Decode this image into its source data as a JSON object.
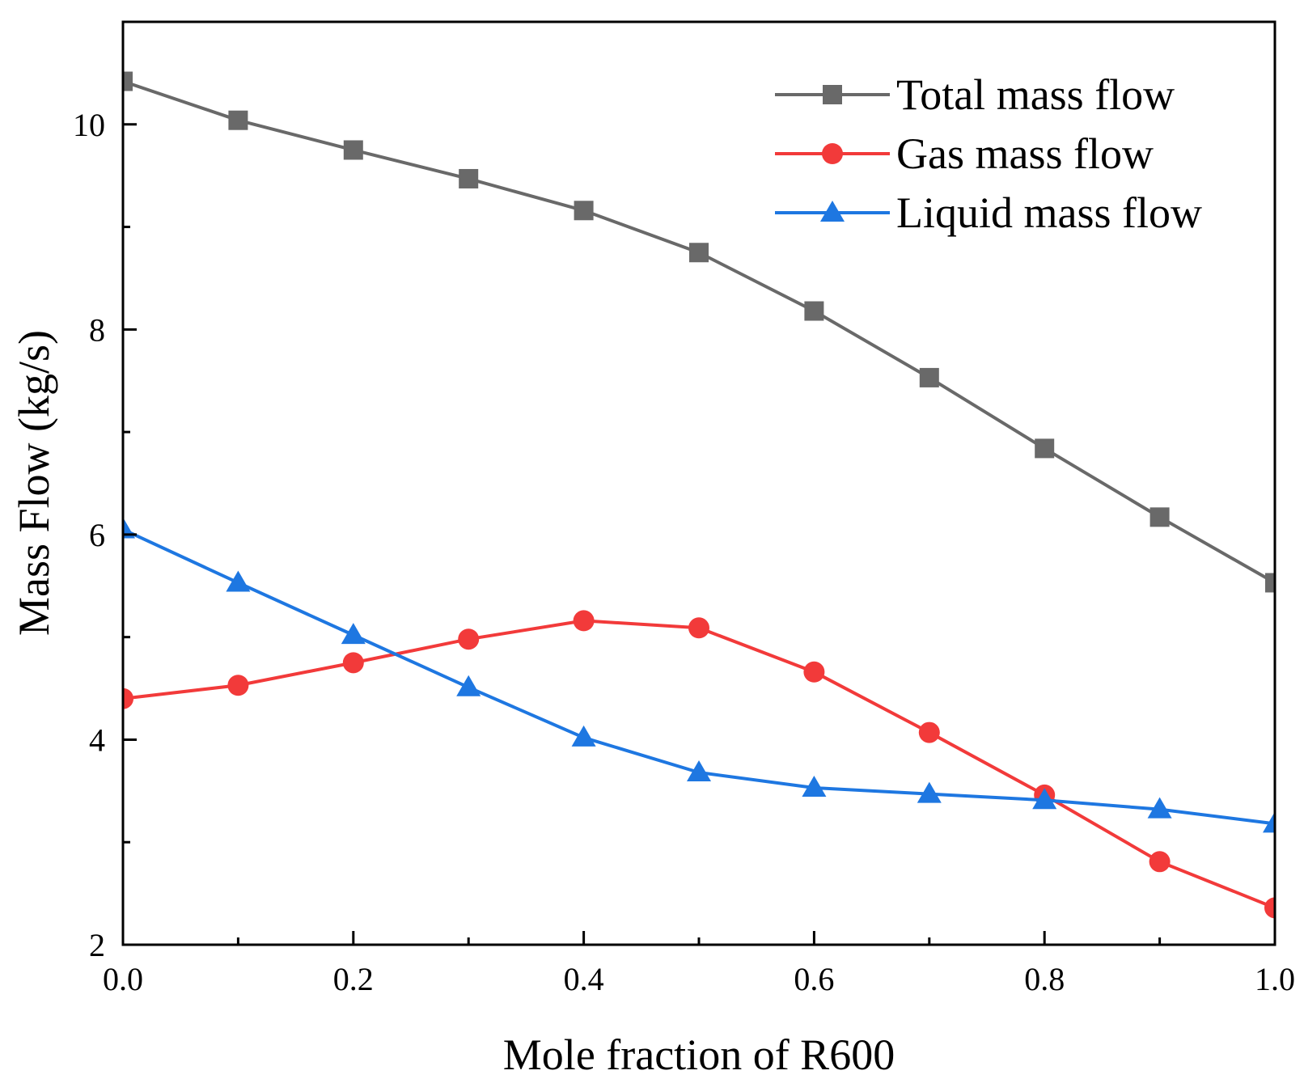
{
  "chart_data": {
    "type": "line",
    "title": "",
    "xlabel": "Mole fraction of R600",
    "ylabel": "Mass Flow (kg/s)",
    "xlim": [
      0.0,
      1.0
    ],
    "ylim": [
      2,
      11
    ],
    "x": [
      0.0,
      0.1,
      0.2,
      0.3,
      0.4,
      0.5,
      0.6,
      0.7,
      0.8,
      0.9,
      1.0
    ],
    "x_ticks": [
      "0.0",
      "0.2",
      "0.4",
      "0.6",
      "0.8",
      "1.0"
    ],
    "x_minor_ticks": [
      0.1,
      0.3,
      0.5,
      0.7,
      0.9
    ],
    "y_ticks": [
      "2",
      "4",
      "6",
      "8",
      "10"
    ],
    "y_minor_ticks": [
      3,
      5,
      7,
      9
    ],
    "grid": false,
    "legend_position": "top-right",
    "series": [
      {
        "name": "Total mass flow",
        "color": "#696969",
        "marker": "square",
        "values": [
          10.42,
          10.04,
          9.75,
          9.47,
          9.16,
          8.75,
          8.18,
          7.53,
          6.84,
          6.17,
          5.53
        ]
      },
      {
        "name": "Gas mass flow",
        "color": "#f23a3a",
        "marker": "circle",
        "values": [
          4.4,
          4.53,
          4.75,
          4.98,
          5.16,
          5.09,
          4.66,
          4.07,
          3.46,
          2.81,
          2.36
        ]
      },
      {
        "name": "Liquid mass flow",
        "color": "#1e77e1",
        "marker": "triangle",
        "values": [
          6.05,
          5.53,
          5.02,
          4.51,
          4.02,
          3.68,
          3.53,
          3.47,
          3.41,
          3.32,
          3.18
        ]
      }
    ]
  }
}
